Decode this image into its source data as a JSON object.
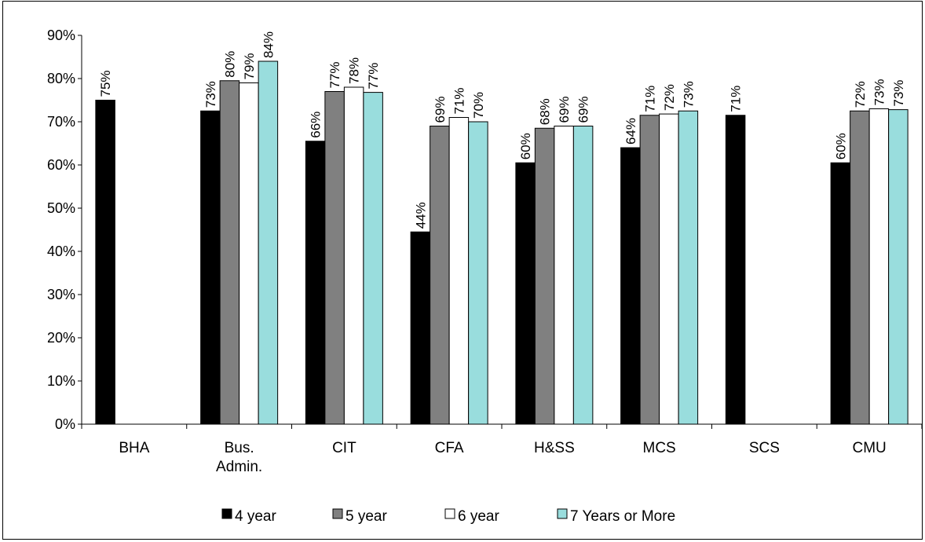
{
  "chart_data": {
    "type": "bar",
    "categories": [
      [
        "BHA"
      ],
      [
        "Bus.",
        "Admin."
      ],
      [
        "CIT"
      ],
      [
        "CFA"
      ],
      [
        "H&SS"
      ],
      [
        "MCS"
      ],
      [
        "SCS"
      ],
      [
        "CMU"
      ]
    ],
    "ylim": [
      0,
      90
    ],
    "y_ticks": [
      0,
      10,
      20,
      30,
      40,
      50,
      60,
      70,
      80,
      90
    ],
    "y_tick_labels": [
      "0%",
      "10%",
      "20%",
      "30%",
      "40%",
      "50%",
      "60%",
      "70%",
      "80%",
      "90%"
    ],
    "grid": false,
    "legend_position": "bottom",
    "series": [
      {
        "name": "4 year",
        "color": "#000000",
        "values": [
          75,
          72.5,
          65.5,
          44.5,
          60.5,
          64,
          71.5,
          60.5
        ],
        "labels": [
          "75%",
          "73%",
          "66%",
          "44%",
          "60%",
          "64%",
          "71%",
          "60%"
        ]
      },
      {
        "name": "5 year",
        "color": "#808080",
        "values": [
          null,
          79.5,
          77,
          69,
          68.5,
          71.5,
          null,
          72.5
        ],
        "labels": [
          null,
          "80%",
          "77%",
          "69%",
          "68%",
          "71%",
          null,
          "72%"
        ]
      },
      {
        "name": "6 year",
        "color": "#ffffff",
        "values": [
          null,
          79,
          78,
          71,
          69,
          71.8,
          null,
          73
        ],
        "labels": [
          null,
          "79%",
          "78%",
          "71%",
          "69%",
          "72%",
          null,
          "73%"
        ]
      },
      {
        "name": "7 Years or More",
        "color": "#99dddd",
        "values": [
          null,
          84,
          76.8,
          70,
          69,
          72.5,
          null,
          72.8
        ],
        "labels": [
          null,
          "84%",
          "77%",
          "70%",
          "69%",
          "73%",
          null,
          "73%"
        ]
      }
    ]
  }
}
